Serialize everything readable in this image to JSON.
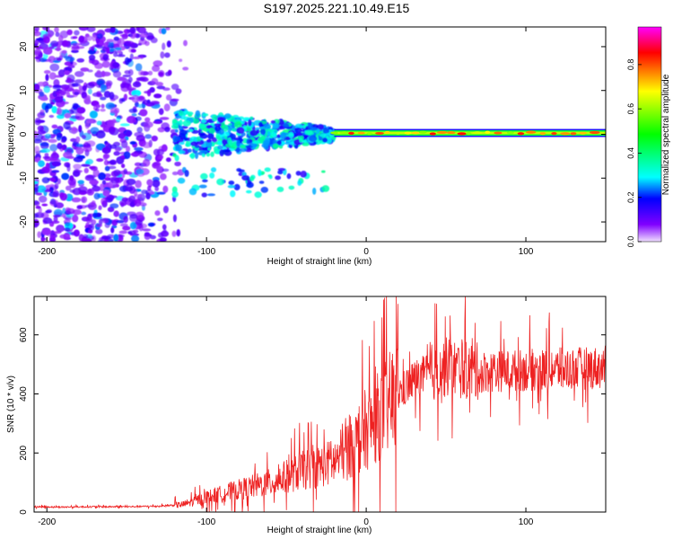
{
  "title": "S197.2025.221.10.49.E15",
  "chart_data": [
    {
      "type": "heatmap",
      "title": "S197.2025.221.10.49.E15",
      "xlabel": "Height of straight line (km)",
      "ylabel": "Frequency (Hz)",
      "xlim": [
        -208,
        150
      ],
      "ylim": [
        -24.5,
        24.5
      ],
      "xticks": [
        -200,
        -100,
        0,
        100
      ],
      "yticks": [
        -20,
        -10,
        0,
        10,
        20
      ],
      "colorbar": {
        "label": "Normalized spectral amplitude",
        "range": [
          0.0,
          0.97
        ],
        "ticks": [
          0.0,
          0.2,
          0.4,
          0.6,
          0.8
        ],
        "tick_labels": [
          "0.0",
          "0.2",
          "0.4",
          "0.6",
          "0.8"
        ],
        "colormap": [
          "#ff00ff",
          "#ff0000",
          "#ffff00",
          "#00ff00",
          "#00ffff",
          "#0000ff",
          "#8000ff",
          "#f0e0ff"
        ]
      },
      "description_regions": [
        {
          "x_range": [
            -208,
            -120
          ],
          "frequency_spread": [
            -24.5,
            24.5
          ],
          "amplitude": [
            0.05,
            0.3
          ]
        },
        {
          "x_range": [
            -120,
            -20
          ],
          "frequency_spread": [
            -14,
            7
          ],
          "amplitude": [
            0.15,
            0.4
          ]
        },
        {
          "x_range": [
            -20,
            150
          ],
          "frequency_center": 0.3,
          "amplitude": [
            0.6,
            0.9
          ]
        }
      ]
    },
    {
      "type": "line",
      "xlabel": "Height of straight line (km)",
      "ylabel": "SNR (10 * v/v)",
      "xlim": [
        -208,
        150
      ],
      "ylim": [
        0,
        730
      ],
      "xticks": [
        -200,
        -100,
        0,
        100
      ],
      "yticks": [
        0,
        200,
        400,
        600
      ],
      "color": "#ee2222",
      "series": [
        {
          "name": "SNR",
          "x": [
            -208,
            -190,
            -170,
            -150,
            -130,
            -115,
            -100,
            -80,
            -60,
            -40,
            -20,
            -10,
            0,
            10,
            20,
            30,
            50,
            70,
            100,
            150
          ],
          "y": [
            18,
            17,
            18,
            18,
            20,
            25,
            50,
            75,
            100,
            140,
            170,
            220,
            270,
            340,
            400,
            450,
            490,
            475,
            480,
            490
          ]
        }
      ]
    }
  ]
}
